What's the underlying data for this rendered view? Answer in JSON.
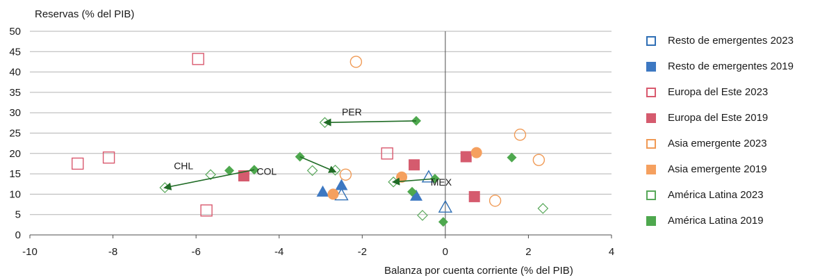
{
  "chart_data": {
    "type": "scatter",
    "title": "",
    "ylabel": "Reservas (% del PIB)",
    "xlabel": "Balanza por cuenta corriente (% del PIB)",
    "xlim": [
      -10,
      4
    ],
    "ylim": [
      0,
      50
    ],
    "xticks": [
      "-10",
      "-8",
      "-6",
      "-4",
      "-2",
      "0",
      "2",
      "4"
    ],
    "yticks": [
      "0",
      "5",
      "10",
      "15",
      "20",
      "25",
      "30",
      "35",
      "40",
      "45",
      "50"
    ],
    "grid": "horizontal",
    "legend_position": "right",
    "series": [
      {
        "name": "Resto de emergentes 2023",
        "marker": "triangle",
        "filled": false,
        "color": "#2f6fb5",
        "points": [
          [
            -2.5,
            9.8
          ],
          [
            -0.4,
            14.2
          ],
          [
            0.0,
            6.8
          ]
        ]
      },
      {
        "name": "Resto de emergentes 2019",
        "marker": "triangle",
        "filled": true,
        "color": "#3d78c2",
        "points": [
          [
            -2.95,
            10.6
          ],
          [
            -2.5,
            12.2
          ],
          [
            -0.7,
            9.6
          ]
        ]
      },
      {
        "name": "Europa del Este 2023",
        "marker": "square",
        "filled": false,
        "color": "#d9596e",
        "points": [
          [
            -5.95,
            43.2
          ],
          [
            -8.85,
            17.5
          ],
          [
            -8.1,
            19.0
          ],
          [
            -5.75,
            6.0
          ],
          [
            -1.4,
            20.0
          ]
        ]
      },
      {
        "name": "Europa del Este 2019",
        "marker": "square",
        "filled": true,
        "color": "#d55b6e",
        "points": [
          [
            -4.85,
            14.5
          ],
          [
            -0.75,
            17.2
          ],
          [
            0.5,
            19.2
          ],
          [
            0.7,
            9.4
          ]
        ]
      },
      {
        "name": "Asia emergente 2023",
        "marker": "circle",
        "filled": false,
        "color": "#f09a55",
        "points": [
          [
            -2.15,
            42.5
          ],
          [
            -2.4,
            14.8
          ],
          [
            1.8,
            24.6
          ],
          [
            2.25,
            18.4
          ],
          [
            1.2,
            8.4
          ]
        ]
      },
      {
        "name": "Asia emergente 2019",
        "marker": "circle",
        "filled": true,
        "color": "#f5a05f",
        "points": [
          [
            -2.7,
            10.0
          ],
          [
            -1.05,
            14.2
          ],
          [
            0.75,
            20.2
          ]
        ]
      },
      {
        "name": "América Latina 2023",
        "marker": "diamond",
        "filled": false,
        "color": "#58a85a",
        "points": [
          [
            -2.9,
            27.6
          ],
          [
            -6.75,
            11.6
          ],
          [
            -5.65,
            14.8
          ],
          [
            -3.2,
            15.8
          ],
          [
            -2.65,
            15.9
          ],
          [
            -1.25,
            13.0
          ],
          [
            -0.55,
            4.8
          ],
          [
            2.35,
            6.5
          ]
        ]
      },
      {
        "name": "América Latina 2019",
        "marker": "diamond",
        "filled": true,
        "color": "#4ea84e",
        "points": [
          [
            -0.7,
            28.0
          ],
          [
            -5.2,
            15.8
          ],
          [
            -4.6,
            16.0
          ],
          [
            -3.5,
            19.2
          ],
          [
            -0.25,
            13.8
          ],
          [
            -0.8,
            10.6
          ],
          [
            -0.05,
            3.2
          ],
          [
            1.6,
            19.0
          ]
        ]
      }
    ],
    "arrows": [
      {
        "from": [
          -0.7,
          28.0
        ],
        "to": [
          -2.9,
          27.6
        ]
      },
      {
        "from": [
          -4.6,
          16.0
        ],
        "to": [
          -6.75,
          11.6
        ]
      },
      {
        "from": [
          -3.5,
          19.2
        ],
        "to": [
          -2.65,
          15.5
        ]
      },
      {
        "from": [
          -0.25,
          13.8
        ],
        "to": [
          -1.25,
          13.0
        ]
      }
    ],
    "annotations": [
      {
        "text": "PER",
        "x": -2.25,
        "y": 30.2
      },
      {
        "text": "CHL",
        "x": -6.3,
        "y": 17.0
      },
      {
        "text": "COL",
        "x": -4.3,
        "y": 15.6
      },
      {
        "text": "MEX",
        "x": -0.1,
        "y": 13.0
      }
    ]
  }
}
